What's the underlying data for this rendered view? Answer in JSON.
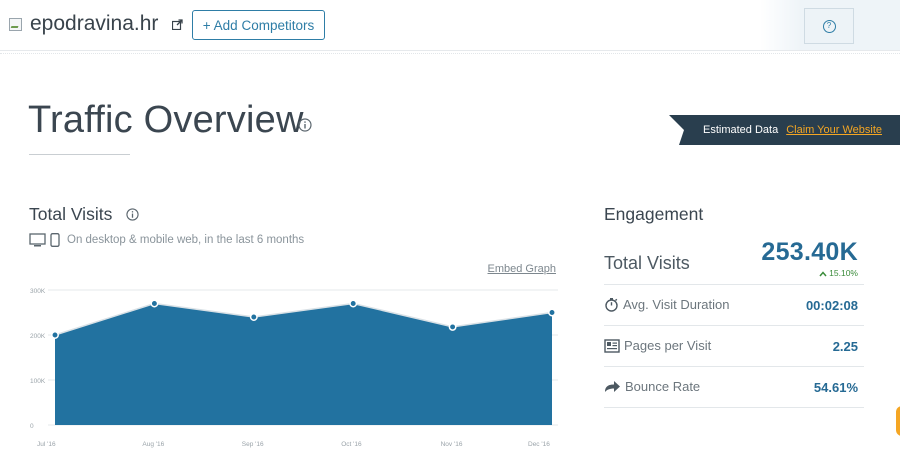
{
  "header": {
    "site_name": "epodravina.hr",
    "add_competitors_label": "+ Add Competitors",
    "help_icon_glyph": "?"
  },
  "page": {
    "title": "Traffic Overview",
    "estimated_label": "Estimated Data",
    "claim_link": "Claim Your Website"
  },
  "total_visits": {
    "title": "Total Visits",
    "subtitle": "On desktop & mobile web, in the last 6 months",
    "embed_label": "Embed Graph"
  },
  "chart_data": {
    "type": "area",
    "x": [
      "Jul '16",
      "Aug '16",
      "Sep '16",
      "Oct '16",
      "Nov '16",
      "Dec '16"
    ],
    "values": [
      200000,
      270000,
      240000,
      270000,
      218000,
      250000
    ],
    "y_ticks": [
      "0",
      "100K",
      "200K",
      "300K"
    ],
    "ylim": [
      0,
      300000
    ],
    "grid": true,
    "color": "#2272a0"
  },
  "engagement": {
    "title": "Engagement",
    "total_visits_label": "Total Visits",
    "total_visits_value": "253.40K",
    "total_visits_change": "15.10%",
    "metrics": [
      {
        "label": "Avg. Visit Duration",
        "value": "00:02:08",
        "icon": "stopwatch-icon"
      },
      {
        "label": "Pages per Visit",
        "value": "2.25",
        "icon": "pages-icon"
      },
      {
        "label": "Bounce Rate",
        "value": "54.61%",
        "icon": "bounce-arrow-icon"
      }
    ]
  },
  "colors": {
    "accent": "#2e7da6",
    "chart_fill": "#2272a0",
    "value_text": "#266a94",
    "banner": "#293e4e",
    "link_orange": "#f5a623",
    "positive": "#3b8c3b"
  }
}
